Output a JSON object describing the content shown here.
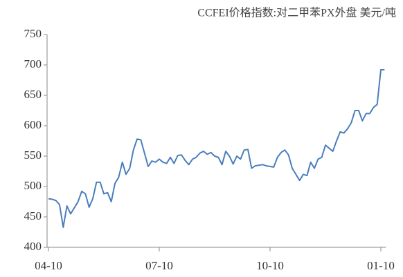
{
  "chart_data": {
    "type": "line",
    "title": "CCFEI价格指数:对二甲苯PX外盘 美元/吨",
    "categories": [
      "04-10",
      null,
      null,
      null,
      null,
      null,
      null,
      null,
      null,
      null,
      null,
      null,
      null,
      null,
      null,
      null,
      null,
      null,
      null,
      null,
      null,
      null,
      null,
      null,
      null,
      null,
      null,
      null,
      null,
      null,
      "07-10",
      null,
      null,
      null,
      null,
      null,
      null,
      null,
      null,
      null,
      null,
      null,
      null,
      null,
      null,
      null,
      null,
      null,
      null,
      null,
      null,
      null,
      null,
      null,
      null,
      null,
      null,
      null,
      null,
      null,
      "10-10",
      null,
      null,
      null,
      null,
      null,
      null,
      null,
      null,
      null,
      null,
      null,
      null,
      null,
      null,
      null,
      null,
      null,
      null,
      null,
      null,
      null,
      null,
      null,
      null,
      null,
      null,
      null,
      null,
      null,
      "01-10",
      null
    ],
    "series": [
      {
        "name": null,
        "color": "#4a7ebb",
        "values": [
          480,
          479,
          477,
          470,
          433,
          468,
          455,
          465,
          475,
          492,
          488,
          466,
          480,
          507,
          507,
          488,
          490,
          475,
          505,
          515,
          540,
          520,
          530,
          560,
          578,
          577,
          555,
          533,
          542,
          540,
          545,
          540,
          538,
          548,
          538,
          551,
          552,
          543,
          536,
          545,
          548,
          555,
          558,
          553,
          556,
          550,
          548,
          536,
          558,
          550,
          537,
          550,
          545,
          560,
          561,
          530,
          534,
          535,
          536,
          534,
          533,
          532,
          548,
          556,
          560,
          552,
          530,
          520,
          510,
          520,
          518,
          540,
          530,
          545,
          548,
          568,
          563,
          558,
          575,
          590,
          588,
          595,
          605,
          625,
          625,
          608,
          620,
          620,
          630,
          635,
          692,
          692
        ]
      }
    ],
    "ylim": [
      400,
      750
    ],
    "yticks": [
      400,
      450,
      500,
      550,
      600,
      650,
      700,
      750
    ]
  }
}
